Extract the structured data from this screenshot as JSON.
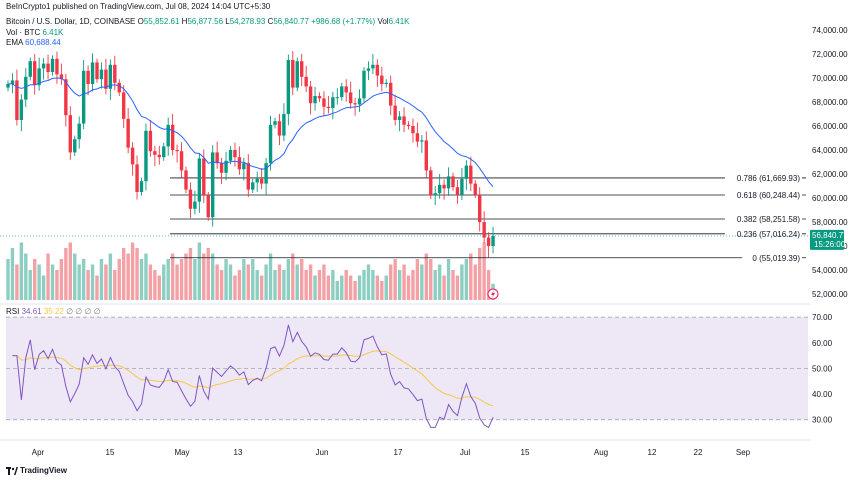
{
  "publisher": "BeInCrypto1 published on TradingView.com, Jul 08, 2024 14:04 UTC+5:30",
  "symbol": "Bitcoin / U.S. Dollar, 1D, COINBASE",
  "ohlc": {
    "o_label": "O",
    "o": "55,852.61",
    "h_label": "H",
    "h": "56,877.56",
    "l_label": "L",
    "l": "54,278.93",
    "c_label": "C",
    "c": "56,840.77",
    "change": "+986.68 (+1.77%)",
    "vol_label": "Vol",
    "vol": "6.41K"
  },
  "vol_btc": {
    "label": "Vol · BTC",
    "value": "6.41K"
  },
  "ema": {
    "label": "EMA",
    "value": "60,688.44"
  },
  "rsi": {
    "label": "RSI",
    "value": "34.61",
    "ma_value": "35.22",
    "extras": "∅ ∅ ∅ ∅"
  },
  "price_badge": {
    "price": "56,840.77",
    "countdown": "15:26:00"
  },
  "brand": "TradingView",
  "colors": {
    "up": "#089981",
    "down": "#f23645",
    "ema": "#2962ff",
    "rsi": "#7e57c2",
    "rsi_ma": "#f7c948",
    "rsi_band": "#ede7f6"
  },
  "chart_data": [
    {
      "type": "candlestick",
      "title": "Bitcoin / U.S. Dollar, 1D, COINBASE",
      "y_ticks": [
        "74,000.00",
        "72,000.00",
        "70,000.00",
        "68,000.00",
        "66,000.00",
        "64,000.00",
        "62,000.00",
        "60,000.00",
        "58,000.00",
        "56,000.00",
        "54,000.00",
        "52,000.00"
      ],
      "x_ticks": [
        "Apr",
        "15",
        "May",
        "13",
        "Jun",
        "17",
        "Jul",
        "15",
        "Aug",
        "12",
        "22",
        "Sep"
      ],
      "ylim": [
        51500,
        75000
      ],
      "fib_levels": [
        {
          "ratio": "0.786",
          "price": 61669.93,
          "label": "0.786 (61,669.93)"
        },
        {
          "ratio": "0.618",
          "price": 60248.44,
          "label": "0.618 (60,248.44)"
        },
        {
          "ratio": "0.382",
          "price": 58251.58,
          "label": "0.382 (58,251.58)"
        },
        {
          "ratio": "0.236",
          "price": 57016.24,
          "label": "0.236 (57,016.24)"
        },
        {
          "ratio": "0",
          "price": 55019.39,
          "label": "0 (55,019.39)"
        }
      ],
      "closes_approx": [
        69500,
        69800,
        66500,
        68200,
        70100,
        71400,
        69400,
        70800,
        71200,
        70500,
        71600,
        70300,
        69900,
        66900,
        63800,
        64900,
        66200,
        70600,
        69500,
        71300,
        69900,
        70700,
        69100,
        71100,
        69600,
        68800,
        66600,
        64200,
        62800,
        60500,
        61400,
        65600,
        63900,
        63600,
        63400,
        64300,
        66100,
        64000,
        63900,
        62300,
        60700,
        59100,
        59700,
        63300,
        60200,
        58400,
        63800,
        62900,
        62100,
        63100,
        64000,
        63400,
        62400,
        62900,
        60700,
        61300,
        61600,
        61200,
        62900,
        66100,
        66400,
        65200,
        67000,
        71500,
        69200,
        71400,
        70100,
        69300,
        67900,
        68500,
        68300,
        67600,
        67500,
        68400,
        68400,
        69300,
        68800,
        67900,
        67800,
        68300,
        70600,
        70800,
        71100,
        70200,
        69500,
        69600,
        67700,
        66500,
        66800,
        66100,
        66000,
        65400,
        64700,
        64800,
        62300,
        60200,
        60400,
        61100,
        60800,
        61800,
        60900,
        60300,
        61600,
        62700,
        61200,
        60300,
        58000,
        56700,
        56000,
        56840
      ]
    },
    {
      "type": "line",
      "title": "RSI",
      "y_ticks": [
        "70.00",
        "60.00",
        "50.00",
        "40.00",
        "30.00"
      ],
      "ylim": [
        26,
        72
      ],
      "band": [
        30,
        70
      ],
      "value": 34.61
    }
  ]
}
